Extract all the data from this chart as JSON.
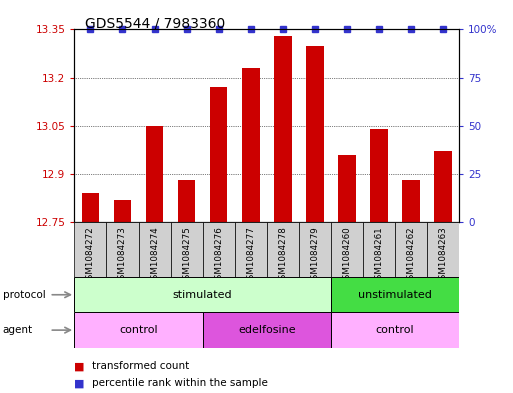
{
  "title": "GDS5544 / 7983360",
  "samples": [
    "GSM1084272",
    "GSM1084273",
    "GSM1084274",
    "GSM1084275",
    "GSM1084276",
    "GSM1084277",
    "GSM1084278",
    "GSM1084279",
    "GSM1084260",
    "GSM1084261",
    "GSM1084262",
    "GSM1084263"
  ],
  "bar_values": [
    12.84,
    12.82,
    13.05,
    12.88,
    13.17,
    13.23,
    13.33,
    13.3,
    12.96,
    13.04,
    12.88,
    12.97
  ],
  "bar_color": "#cc0000",
  "percentile_color": "#3333cc",
  "ymin": 12.75,
  "ymax": 13.35,
  "yticks": [
    12.75,
    12.9,
    13.05,
    13.2,
    13.35
  ],
  "ytick_labels": [
    "12.75",
    "12.9",
    "13.05",
    "13.2",
    "13.35"
  ],
  "y2ticks": [
    0,
    25,
    50,
    75,
    100
  ],
  "y2tick_labels": [
    "0",
    "25",
    "50",
    "75",
    "100%"
  ],
  "protocol_light_color": "#ccffcc",
  "protocol_dark_color": "#44dd44",
  "agent_light_color": "#ffb0ff",
  "agent_dark_color": "#dd55dd",
  "sample_box_color": "#d0d0d0",
  "background_color": "#ffffff",
  "title_fontsize": 10,
  "tick_fontsize": 7.5,
  "row_label_fontsize": 7.5,
  "row_text_fontsize": 8,
  "legend_fontsize": 7.5,
  "sample_fontsize": 6.3
}
